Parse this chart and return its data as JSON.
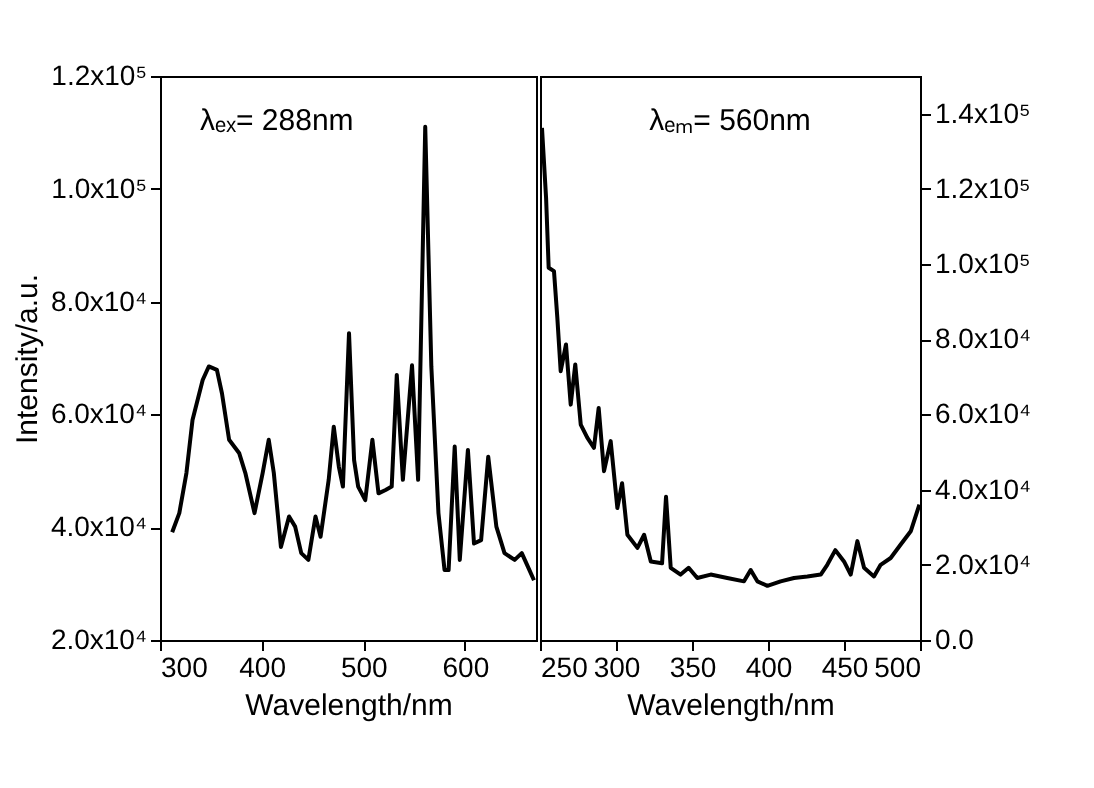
{
  "chart_data": [
    {
      "type": "line",
      "xlabel": "Wavelength/nm",
      "ylabel": "Intensity/a.u.",
      "annotations": [
        "λₑₓ= 288nm"
      ],
      "xlim": [
        300,
        670
      ],
      "xticks": [
        300,
        400,
        500,
        600
      ],
      "ylim": [
        20000,
        120000
      ],
      "yticks": [
        {
          "value": 20000,
          "label": "2.0x10⁴"
        },
        {
          "value": 40000,
          "label": "4.0x10⁴"
        },
        {
          "value": 60000,
          "label": "6.0x10⁴"
        },
        {
          "value": 80000,
          "label": "8.0x10⁴"
        },
        {
          "value": 100000,
          "label": "1.0x10⁵"
        },
        {
          "value": 120000,
          "label": "1.2x10⁵"
        }
      ],
      "grid": false,
      "marker": "none",
      "line_style": "solid",
      "series": [
        {
          "color": "#000000",
          "x": [
            312,
            319,
            326,
            332,
            342,
            348,
            356,
            361,
            368,
            378,
            384,
            393,
            401,
            407,
            412,
            419,
            427,
            433,
            439,
            446,
            453,
            458,
            466,
            471,
            476,
            480,
            486,
            491,
            495,
            502,
            509,
            515,
            522,
            528,
            533,
            539,
            548,
            554,
            561,
            567,
            574,
            580,
            584,
            590,
            595,
            603,
            609,
            616,
            623,
            631,
            639,
            649,
            656,
            662,
            668
          ],
          "values": [
            39100,
            42500,
            49600,
            59000,
            66100,
            68500,
            67900,
            63700,
            55500,
            53100,
            49600,
            42500,
            49600,
            55500,
            49600,
            36500,
            41900,
            40100,
            35400,
            34200,
            41900,
            38300,
            48400,
            57800,
            50700,
            47200,
            74400,
            51900,
            47200,
            44800,
            55500,
            46000,
            46600,
            47200,
            67000,
            48400,
            68700,
            48400,
            111000,
            68500,
            42500,
            32400,
            32400,
            54300,
            34200,
            53700,
            37100,
            37700,
            52500,
            40100,
            35400,
            34200,
            35400,
            33000,
            30600
          ]
        }
      ]
    },
    {
      "type": "line",
      "xlabel": "Wavelength/nm",
      "annotations": [
        "λₑₘ= 560nm"
      ],
      "xlim": [
        250,
        500
      ],
      "xticks": [
        250,
        300,
        350,
        400,
        450,
        500
      ],
      "ylim": [
        0,
        150000
      ],
      "yticks": [
        {
          "value": 0,
          "label": "0.0"
        },
        {
          "value": 20000,
          "label": "2.0x10⁴"
        },
        {
          "value": 40000,
          "label": "4.0x10⁴"
        },
        {
          "value": 60000,
          "label": "6.0x10⁴"
        },
        {
          "value": 80000,
          "label": "8.0x10⁴"
        },
        {
          "value": 100000,
          "label": "1.0x10⁵"
        },
        {
          "value": 120000,
          "label": "1.2x10⁵"
        },
        {
          "value": 140000,
          "label": "1.4x10⁵"
        }
      ],
      "grid": false,
      "marker": "none",
      "line_style": "solid",
      "series": [
        {
          "color": "#000000",
          "x": [
            251.3,
            254,
            255.7,
            259.2,
            261.4,
            263.6,
            267.1,
            270.2,
            273.2,
            276.8,
            281.1,
            285.5,
            288.6,
            292.1,
            296.5,
            300.9,
            304,
            307.5,
            314.1,
            318.5,
            322.9,
            330.3,
            332.9,
            336,
            342.5,
            347.8,
            353.5,
            362.3,
            373.2,
            384.2,
            388.6,
            393,
            399.6,
            408.3,
            417.1,
            425.9,
            434.7,
            439,
            444.3,
            450,
            454.4,
            458.8,
            463.2,
            469.7,
            474.1,
            480.7,
            487.3,
            493.9,
            499.6
          ],
          "values": [
            136200,
            117600,
            99000,
            98100,
            85700,
            71500,
            78600,
            62600,
            73300,
            57300,
            53800,
            51100,
            61700,
            44900,
            52900,
            35100,
            41700,
            28000,
            24500,
            28000,
            20900,
            20400,
            38100,
            19200,
            17400,
            19200,
            16500,
            17400,
            16500,
            15600,
            18600,
            15600,
            14400,
            15600,
            16500,
            16900,
            17400,
            20000,
            23900,
            20900,
            17400,
            26300,
            19200,
            16900,
            20000,
            21800,
            25400,
            28900,
            36000
          ]
        }
      ]
    }
  ]
}
